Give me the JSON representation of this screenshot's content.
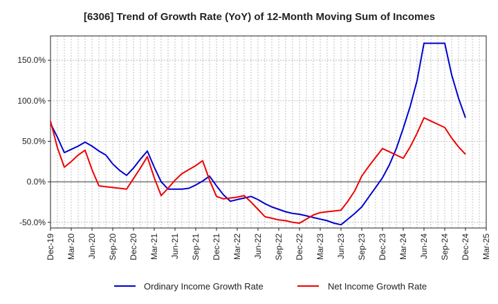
{
  "chart_data": {
    "type": "line",
    "title": "[6306]  Trend of Growth Rate (YoY) of 12-Month Moving Sum of Incomes",
    "xlabel": "",
    "ylabel": "",
    "x": [
      "Dec-19",
      "Jan-20",
      "Feb-20",
      "Mar-20",
      "Apr-20",
      "May-20",
      "Jun-20",
      "Jul-20",
      "Aug-20",
      "Sep-20",
      "Oct-20",
      "Nov-20",
      "Dec-20",
      "Jan-21",
      "Feb-21",
      "Mar-21",
      "Apr-21",
      "May-21",
      "Jun-21",
      "Jul-21",
      "Aug-21",
      "Sep-21",
      "Oct-21",
      "Nov-21",
      "Dec-21",
      "Jan-22",
      "Feb-22",
      "Mar-22",
      "Apr-22",
      "May-22",
      "Jun-22",
      "Jul-22",
      "Aug-22",
      "Sep-22",
      "Oct-22",
      "Nov-22",
      "Dec-22",
      "Jan-23",
      "Feb-23",
      "Mar-23",
      "Apr-23",
      "May-23",
      "Jun-23",
      "Jul-23",
      "Aug-23",
      "Sep-23",
      "Oct-23",
      "Nov-23",
      "Dec-23",
      "Jan-24",
      "Feb-24",
      "Mar-24",
      "Apr-24",
      "May-24",
      "Jun-24",
      "Jul-24",
      "Aug-24",
      "Sep-24",
      "Oct-24",
      "Nov-24",
      "Dec-24",
      "Jan-25",
      "Feb-25",
      "Mar-25"
    ],
    "tick_labels": [
      "Dec-19",
      "Mar-20",
      "Jun-20",
      "Sep-20",
      "Dec-20",
      "Mar-21",
      "Jun-21",
      "Sep-21",
      "Dec-21",
      "Mar-22",
      "Jun-22",
      "Sep-22",
      "Dec-22",
      "Mar-23",
      "Jun-23",
      "Sep-23",
      "Dec-23",
      "Mar-24",
      "Jun-24",
      "Sep-24",
      "Dec-24",
      "Mar-25"
    ],
    "y_ticks": [
      -50,
      0,
      50,
      100,
      150
    ],
    "y_tick_labels": [
      "-50.0%",
      "0.0%",
      "50.0%",
      "100.0%",
      "150.0%"
    ],
    "ylim": [
      -57,
      180
    ],
    "grid": true,
    "legend_position": "bottom",
    "series": [
      {
        "name": "Ordinary Income Growth Rate",
        "color": "#0000cc",
        "values": [
          72,
          55,
          36,
          40,
          44,
          49,
          44,
          38,
          33,
          22,
          14,
          8,
          17,
          28,
          38,
          18,
          0,
          -9,
          -9,
          -9,
          -8,
          -4,
          1,
          7,
          -5,
          -16,
          -24,
          -22,
          -20,
          -18,
          -22,
          -27,
          -31,
          -34,
          -37,
          -39,
          -40,
          -42,
          -44,
          -46,
          -48,
          -51,
          -53,
          -46,
          -39,
          -31,
          -19,
          -7,
          5,
          21,
          41,
          66,
          93,
          125,
          171,
          171,
          171,
          171,
          132,
          103,
          79,
          null,
          null,
          null
        ]
      },
      {
        "name": "Net Income Growth Rate",
        "color": "#ee0000",
        "values": [
          75,
          42,
          18,
          25,
          33,
          39,
          15,
          -5,
          -6,
          -7,
          -8,
          -9,
          4,
          17,
          31,
          5,
          -17,
          -8,
          2,
          10,
          15,
          20,
          26,
          2,
          -18,
          -21,
          -20,
          -19,
          -17,
          -25,
          -34,
          -43,
          -45,
          -47,
          -48,
          -50,
          -51,
          -46,
          -41,
          -38,
          -37,
          -36,
          -35,
          -24,
          -11,
          7,
          19,
          30,
          41,
          37,
          33,
          29,
          43,
          60,
          79,
          75,
          71,
          67,
          54,
          43,
          34,
          null,
          null,
          null
        ]
      }
    ]
  }
}
